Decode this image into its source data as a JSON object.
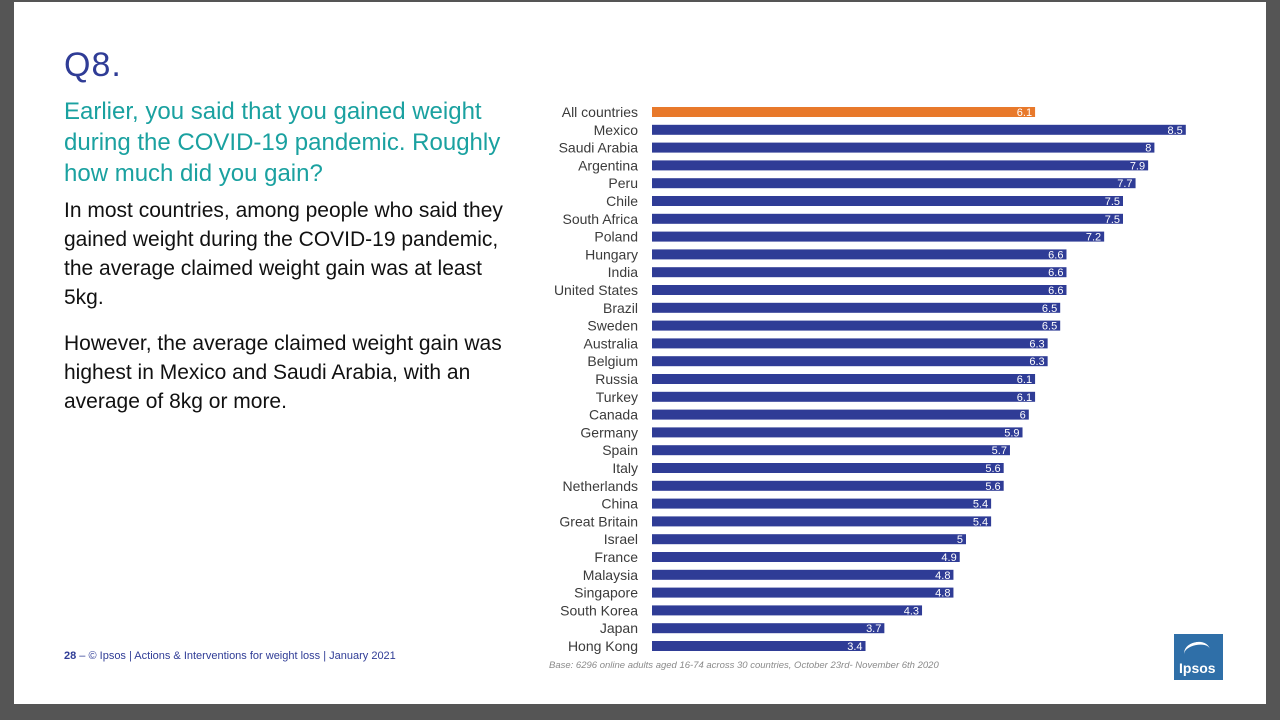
{
  "slide": {
    "title": "Q8.",
    "question": "Earlier, you said that you gained weight during the COVID-19 pandemic. Roughly how much did you gain?",
    "paragraph1": "In most countries, among people who said they gained weight during the COVID-19 pandemic, the average claimed weight gain was at least 5kg.",
    "paragraph2": "However, the average claimed weight gain was highest in Mexico and Saudi Arabia, with an average of 8kg or more.",
    "footer_page": "28",
    "footer_text": " – © Ipsos | Actions & Interventions for weight loss | January 2021",
    "base_note": "Base: 6296 online adults aged 16-74 across 30 countries, October 23rd- November 6th 2020",
    "logo_text": "Ipsos"
  },
  "colors": {
    "highlight": "#e8792b",
    "bar": "#2f3c96",
    "question": "#1aa1a0",
    "title": "#2f3c96"
  },
  "chart_data": {
    "type": "bar",
    "orientation": "horizontal",
    "highlight_category": "All countries",
    "categories": [
      "All countries",
      "Mexico",
      "Saudi Arabia",
      "Argentina",
      "Peru",
      "Chile",
      "South Africa",
      "Poland",
      "Hungary",
      "India",
      "United States",
      "Brazil",
      "Sweden",
      "Australia",
      "Belgium",
      "Russia",
      "Turkey",
      "Canada",
      "Germany",
      "Spain",
      "Italy",
      "Netherlands",
      "China",
      "Great Britain",
      "Israel",
      "France",
      "Malaysia",
      "Singapore",
      "South Korea",
      "Japan",
      "Hong Kong"
    ],
    "values": [
      6.1,
      8.5,
      8,
      7.9,
      7.7,
      7.5,
      7.5,
      7.2,
      6.6,
      6.6,
      6.6,
      6.5,
      6.5,
      6.3,
      6.3,
      6.1,
      6.1,
      6,
      5.9,
      5.7,
      5.6,
      5.6,
      5.4,
      5.4,
      5,
      4.9,
      4.8,
      4.8,
      4.3,
      3.7,
      3.4
    ],
    "value_labels": [
      "6.1",
      "8.5",
      "8",
      "7.9",
      "7.7",
      "7.5",
      "7.5",
      "7.2",
      "6.6",
      "6.6",
      "6.6",
      "6.5",
      "6.5",
      "6.3",
      "6.3",
      "6.1",
      "6.1",
      "6",
      "5.9",
      "5.7",
      "5.6",
      "5.6",
      "5.4",
      "5.4",
      "5",
      "4.9",
      "4.8",
      "4.8",
      "4.3",
      "3.7",
      "3.4"
    ],
    "xlim": [
      0,
      8.5
    ],
    "grid": false,
    "legend": "none"
  }
}
